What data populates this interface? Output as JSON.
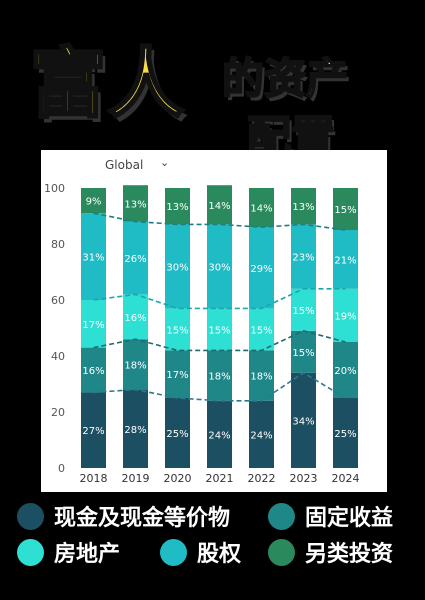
{
  "title": {
    "main": "富人",
    "sub_line1": "的资产",
    "sub_line2": "配置"
  },
  "chart_header": {
    "selector_label": "Global",
    "selector_caret": "⌄"
  },
  "legend": [
    {
      "name": "现金及现金等价物",
      "color": "#1d4f63"
    },
    {
      "name": "固定收益",
      "color": "#1f8788"
    },
    {
      "name": "房地产",
      "color": "#2ee0d4"
    },
    {
      "name": "股权",
      "color": "#1fbcc5"
    },
    {
      "name": "另类投资",
      "color": "#2a8a5e"
    }
  ],
  "chart_data": {
    "type": "bar",
    "stacked": true,
    "categories": [
      "2018",
      "2019",
      "2020",
      "2021",
      "2022",
      "2023",
      "2024"
    ],
    "series": [
      {
        "name": "现金及现金等价物",
        "values": [
          27,
          28,
          25,
          24,
          24,
          34,
          25
        ]
      },
      {
        "name": "固定收益",
        "values": [
          16,
          18,
          17,
          18,
          18,
          15,
          20
        ]
      },
      {
        "name": "房地产",
        "values": [
          17,
          16,
          15,
          15,
          15,
          15,
          19
        ]
      },
      {
        "name": "股权",
        "values": [
          31,
          26,
          30,
          30,
          29,
          23,
          21
        ]
      },
      {
        "name": "另类投资",
        "values": [
          9,
          13,
          13,
          14,
          14,
          13,
          15
        ]
      }
    ],
    "ylim": [
      0,
      100
    ],
    "yticks": [
      0,
      20,
      40,
      60,
      80,
      100
    ],
    "value_suffix": "%",
    "connector_lines": "dashed",
    "grid": false
  }
}
